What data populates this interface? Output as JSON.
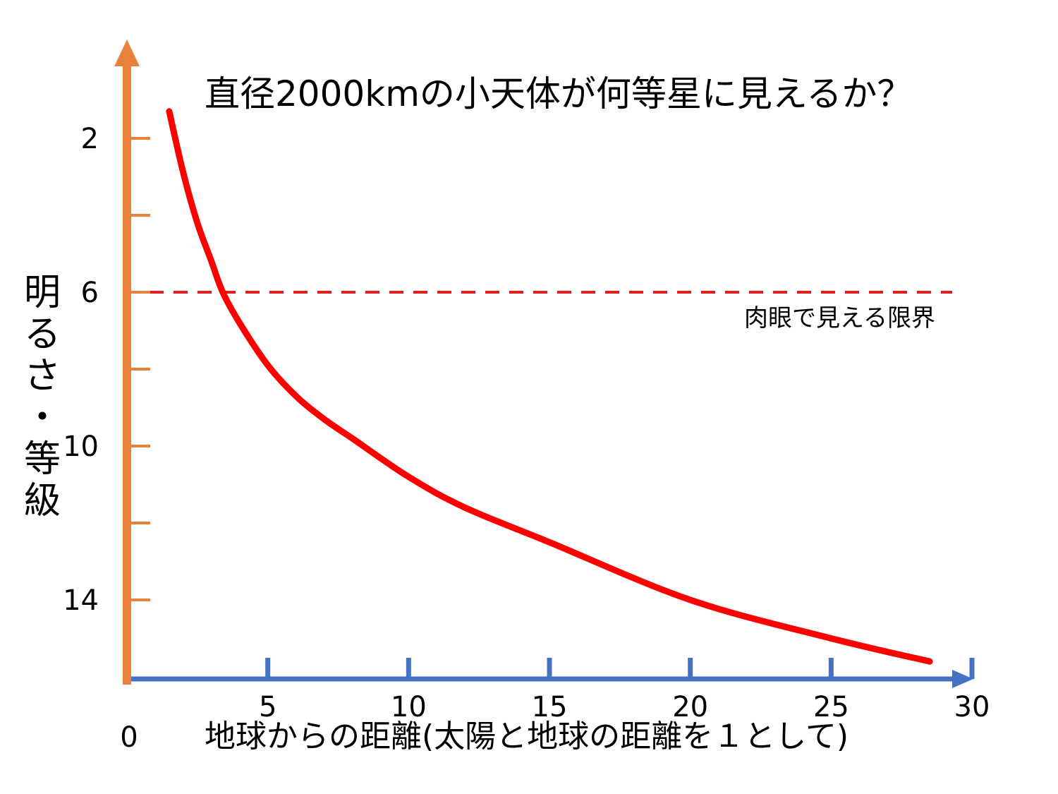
{
  "chart_data": {
    "type": "line",
    "title": "直径2000kmの小天体が何等星に見えるか？",
    "xlabel": "地球からの距離(太陽と地球の距離を１として)",
    "ylabel_chars": [
      "明",
      "る",
      "さ",
      "・",
      "等",
      "級"
    ],
    "origin_label": "0",
    "x_ticks": [
      5,
      10,
      15,
      20,
      25,
      30
    ],
    "x_tick_labels": [
      "5",
      "10",
      "15",
      "20",
      "25",
      "30"
    ],
    "y_ticks": [
      2,
      4,
      6,
      8,
      10,
      12,
      14
    ],
    "y_tick_labels": [
      "2",
      "",
      "6",
      "",
      "10",
      "",
      "14"
    ],
    "xlim": [
      0,
      30
    ],
    "ylim": [
      16.3,
      -0.9
    ],
    "y_inverted": true,
    "threshold": {
      "y": 6,
      "label": "肉眼で見える限界"
    },
    "series": [
      {
        "x": [
          1.5,
          2,
          2.5,
          3,
          3.4,
          4,
          5,
          6,
          7,
          8,
          10,
          12,
          15,
          20,
          25,
          28.5
        ],
        "values": [
          1.3,
          2.9,
          4.2,
          5.2,
          6.0,
          6.8,
          7.9,
          8.7,
          9.3,
          9.8,
          10.8,
          11.6,
          12.5,
          14.0,
          15.0,
          15.6
        ]
      }
    ],
    "colors": {
      "y_axis": "#E8823A",
      "x_axis": "#4472C4",
      "curve": "#FF0000",
      "threshold": "#E02020"
    }
  }
}
